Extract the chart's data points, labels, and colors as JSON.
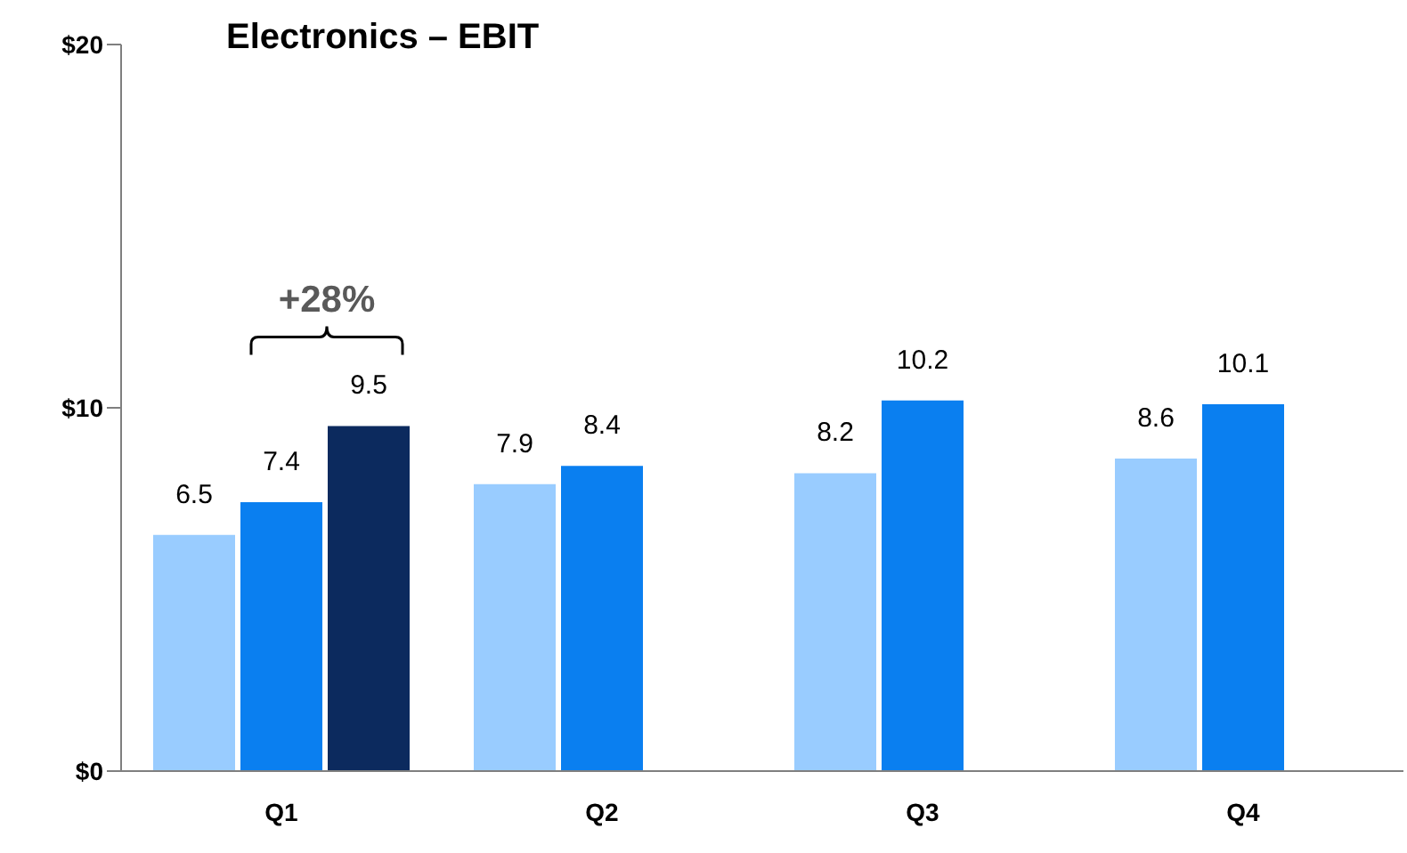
{
  "chart_data": {
    "type": "bar",
    "title": "Electronics – EBIT",
    "categories": [
      "Q1",
      "Q2",
      "Q3",
      "Q4"
    ],
    "series": [
      {
        "color": "#99ccff",
        "values": [
          6.5,
          7.9,
          8.2,
          8.6
        ]
      },
      {
        "color": "#0a7ff0",
        "values": [
          7.4,
          8.4,
          10.2,
          10.1
        ]
      },
      {
        "color": "#0c2a5e",
        "values": [
          9.5,
          null,
          null,
          null
        ]
      }
    ],
    "ylim": [
      0,
      20
    ],
    "yticks": [
      {
        "value": 0,
        "label": "$0"
      },
      {
        "value": 10,
        "label": "$10"
      },
      {
        "value": 20,
        "label": "$20"
      }
    ],
    "grid": false,
    "legend": false,
    "data_labels": true,
    "annotations": [
      "+28%"
    ]
  }
}
